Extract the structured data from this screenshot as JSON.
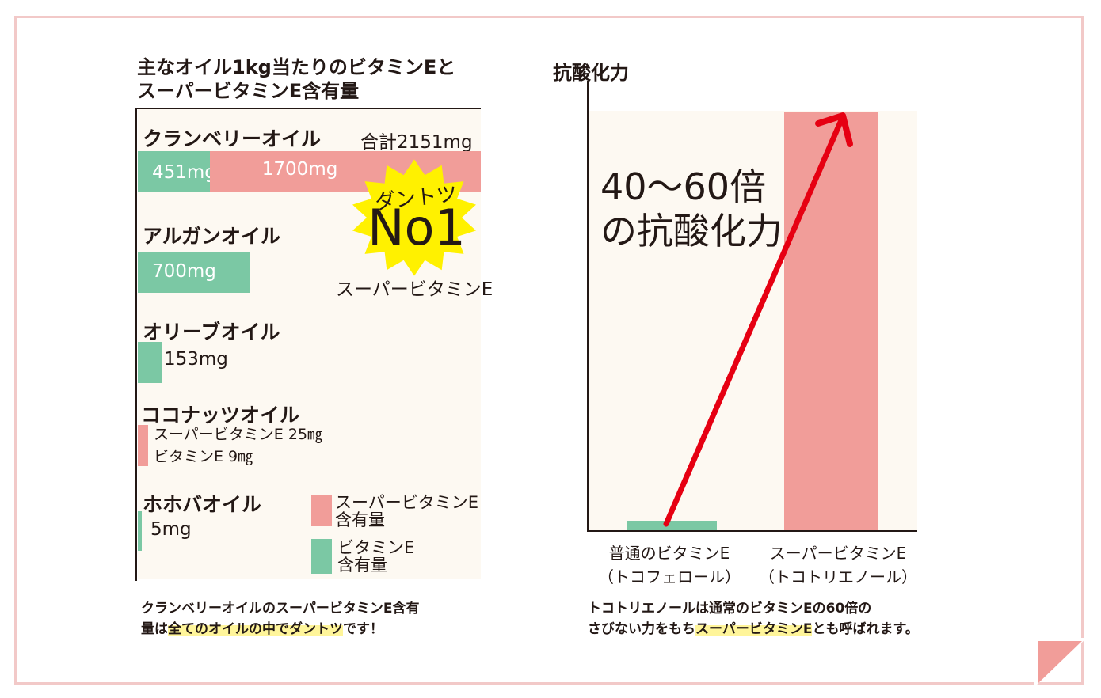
{
  "colors": {
    "super_vitamin_e": "#f19d99",
    "vitamin_e": "#7bc8a4",
    "panel_bg": "#fdf9f2",
    "frame": "#f2c9c8",
    "badge": "#fff100",
    "arrow": "#e60012",
    "highlight": "#fff59a"
  },
  "left_chart": {
    "title_line1": "主なオイル1kg当たりのビタミンEと",
    "title_line2": "スーパービタミンE含有量",
    "badge_line1": "ダントツ",
    "badge_line2": "No1",
    "badge_caption": "スーパービタミンE",
    "legend": {
      "super_line1": "スーパービタミンE",
      "super_line2": "含有量",
      "vit_line1": "ビタミンE",
      "vit_line2": "含有量"
    },
    "caption_part1": "クランベリーオイルのスーパービタミンE含有",
    "caption_part2": "量は",
    "caption_highlight": "全てのオイルの中でダントツ",
    "caption_part3": "です！"
  },
  "chart_data": [
    {
      "type": "bar",
      "orientation": "horizontal",
      "stacked": true,
      "title": "主なオイル1kg当たりのビタミンEとスーパービタミンE含有量",
      "categories": [
        "クランベリーオイル",
        "アルガンオイル",
        "オリーブオイル",
        "ココナッツオイル",
        "ホホバオイル"
      ],
      "series": [
        {
          "name": "ビタミンE含有量",
          "values": [
            451,
            700,
            153,
            9,
            5
          ]
        },
        {
          "name": "スーパービタミンE含有量",
          "values": [
            1700,
            0,
            0,
            25,
            0
          ]
        }
      ],
      "unit": "mg",
      "labels": {
        "cranberry_total": "合計2151mg",
        "cranberry_vit": "451mg",
        "cranberry_super": "1700mg",
        "argan_vit": "700mg",
        "olive_vit": "153mg",
        "coconut_super": "スーパービタミンE 25㎎",
        "coconut_vit": "ビタミンE 9㎎",
        "jojoba_vit": "5mg"
      },
      "legend": "bottom-right",
      "xlim": [
        0,
        2151
      ]
    },
    {
      "type": "bar",
      "title": "",
      "ylabel": "抗酸化力",
      "categories": [
        "普通のビタミンE",
        "スーパービタミンE"
      ],
      "category_sub": [
        "（トコフェロール）",
        "（トコトリエノール）"
      ],
      "values": [
        1,
        50
      ],
      "annotation_line1": "40〜60倍",
      "annotation_line2": "の抗酸化力",
      "caption_line1": "トコトリエノールは通常のビタミンEの60倍の",
      "caption_part2": "さびない力をもち",
      "caption_highlight": "スーパービタミンE",
      "caption_part3": "とも呼ばれます。"
    }
  ]
}
